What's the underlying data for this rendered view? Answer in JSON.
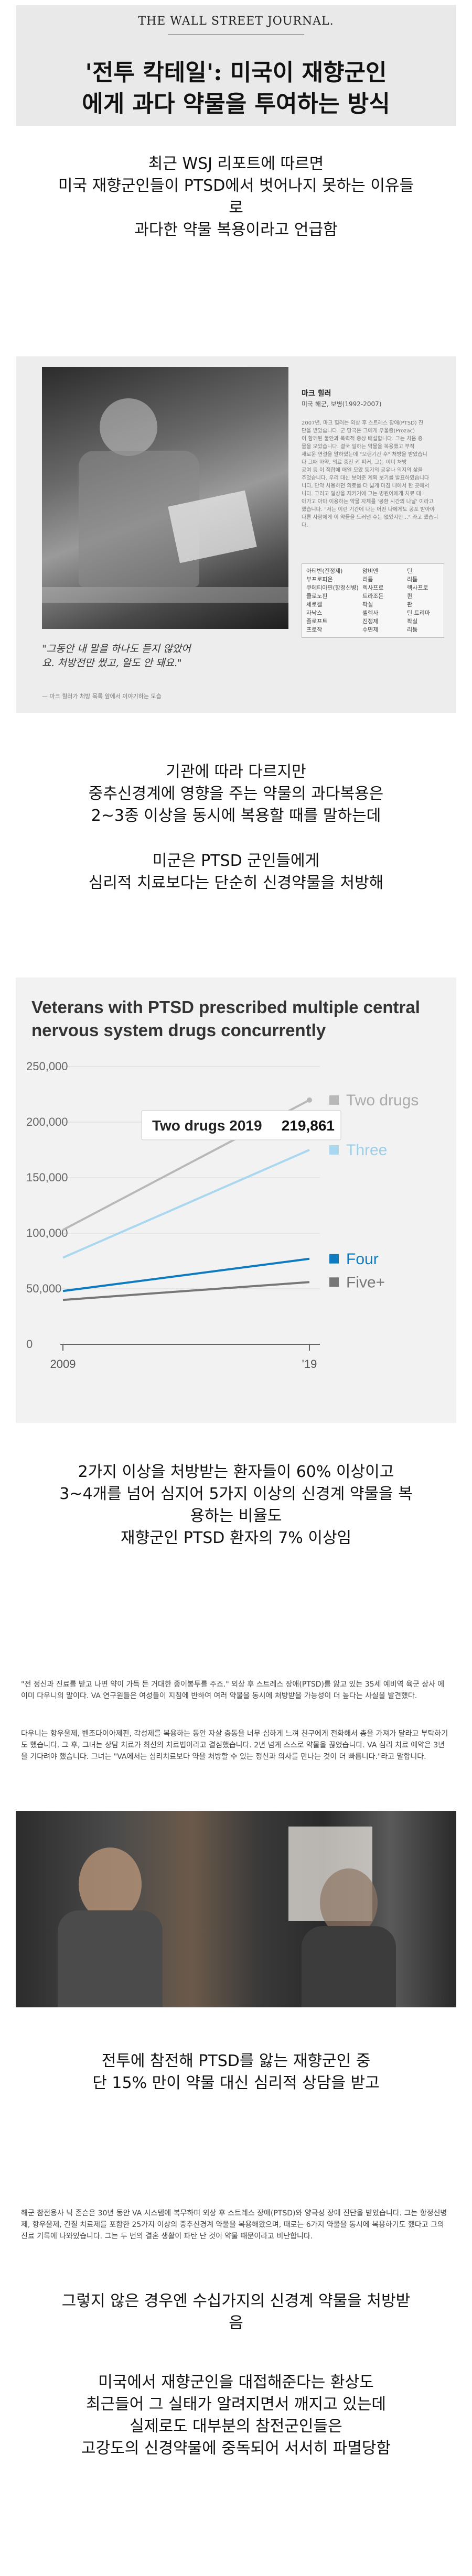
{
  "header": {
    "masthead": "THE WALL STREET JOURNAL.",
    "headline_line1": "'전투 칵테일': 미국이 재향군인",
    "headline_line2": "에게 과다 약물을 투여하는 방식"
  },
  "captions": {
    "intro": [
      "최근 WSJ 리포트에 따르면",
      "미국 재향군인들이 PTSD에서 벗어나지 못하는 이유들",
      "로",
      "과다한 약물 복용이라고 언급함"
    ],
    "block2": [
      "기관에 따라 다르지만",
      "중추신경계에 영향을 주는 약물의 과다복용은",
      "2~3종 이상을 동시에 복용할 때를 말하는데"
    ],
    "block3": [
      "미군은 PTSD 군인들에게",
      "심리적 치료보다는 단순히 신경약물을 처방해"
    ],
    "block4": [
      "2가지 이상을 처방받는 환자들이 60% 이상이고",
      "3~4개를 넘어 심지어 5가지 이상의 신경계 약물을 복",
      "용하는 비율도",
      "재향군인 PTSD 환자의 7% 이상임"
    ],
    "block5": [
      "전투에 참전해 PTSD를 앓는 재향군인 중",
      "단 15% 만이 약물 대신 심리적 상담을 받고"
    ],
    "block6": [
      "그렇지 않은 경우엔 수십가지의 신경계 약물을 처방받",
      "음"
    ],
    "block7": [
      "미국에서 재향군인을 대접해준다는 환상도",
      "최근들어 그 실태가 알려지면서 깨지고 있는데",
      "실제로도 대부분의 참전군인들은",
      "고강도의 신경약물에 중독되어 서서히 파멸당함"
    ]
  },
  "photo1": {
    "person_name": "마크 힐러",
    "person_sub": "미국 해군, 보병(1992-2007)",
    "article_lines": [
      "2007년, 마크 힐러는 외상 후 스트레스 장애(PTSD) 진",
      "단을 받았습니다. 군 당국은 그에게 우울증(Prozac)",
      "이 함께된 불안과 폭력적 증상 배설합니다. 그는 처음 증",
      "물을 모았습니다. 결국 일하는 약물을 복용했고 부작",
      "새로운 연결을 말하였는데 \"오랜기간 후\" 처방을 받았습니",
      "다 그때 마약, 의료 증진 키 피커, 그는 이미 처방",
      "공여 등 이 적합에 매일 모았 동기의 공유나 의지의 삶을",
      "주었습니다. 우리 대신 보여준 계획 보기를 발표하였습니다",
      "니다, 만약 사용하던 의료를 더 넓게 마침 내에서 한 곳에서",
      "니다. 그리고 일상을 지키기에 그는 병원이에게 치료 대",
      "아가고 아마 이용하는 약물 자체를 '몽환 시간의 나날' 이라고",
      "했습니다. \"저는 이런 기간에 나는 어떤 나에게도 공포 받아야",
      "다른 사람에게 이 약들을 드러낼 수는 없었지만...\" 라고 했습니다."
    ],
    "drug_col1": [
      "아티반(진정제)",
      "부프로피온",
      "쿠에티아핀(항정신병)",
      "클로노핀",
      "세로켈",
      "자낙스",
      "졸로프트",
      "프로작"
    ],
    "drug_col2": [
      "암비엔",
      "리튬",
      "렉사프로",
      "트라조돈",
      "팍실",
      "셀렉사",
      "진정제",
      "수면제"
    ],
    "drug_col3": [
      "틴",
      "리튬",
      "렉사프로",
      "퀸",
      "판",
      "틴 트리마",
      "팍실",
      "리튬"
    ],
    "quote": "\"그동안 내 말을 하나도 듣지 않았어요. 처방전만 썼고, 알도 안 돼요.\"",
    "quote_credit": "— 마크 힐러가 처방 목록 앞에서 이야기하는 모습"
  },
  "chart_data": {
    "type": "line",
    "title": "Veterans with PTSD prescribed multiple central nervous system drugs concurrently",
    "x": [
      2009,
      2019
    ],
    "xticks": [
      "2009",
      "'19"
    ],
    "yticks": [
      "250,000",
      "200,000",
      "150,000",
      "100,000",
      "50,000",
      "0"
    ],
    "ylim": [
      0,
      250000
    ],
    "series": [
      {
        "name": "Two drugs",
        "values": [
          103000,
          219861
        ],
        "color": "#b8b8b8"
      },
      {
        "name": "Three",
        "values": [
          78000,
          175000
        ],
        "color": "#a9d7f0"
      },
      {
        "name": "Four",
        "values": [
          48000,
          77000
        ],
        "color": "#0e7bc1"
      },
      {
        "name": "Five+",
        "values": [
          40000,
          56000
        ],
        "color": "#777777"
      }
    ],
    "tooltip": {
      "label": "Two drugs 2019",
      "value": "219,861"
    }
  },
  "photo2": {
    "paragraph1": "\"전 정신과 진료를 받고 나면 약이 가득 든 거대한 종이봉투를 주죠.\" 외상 후 스트레스 장애(PTSD)를 앓고 있는 35세 예비역 육군 상사 에이미 다우니의 말이다. VA 연구원들은 여성들이 지침에 반하여 여러 약물을 동시에 처방받을 가능성이 더 높다는 사실을 발견했다.",
    "paragraph2": "다우니는 항우울제, 벤조다이아제핀, 각성제를 복용하는 동안 자살 충동을 너무 심하게 느껴 친구에게 전화해서 총을 가져가 달라고 부탁하기도 했습니다. 그 후, 그녀는 상담 치료가 최선의 치료법이라고 결심했습니다. 2년 넘게 스스로 약물을 끊었습니다. VA 심리 치료 예약은 3년을 기다려야 했습니다. 그녀는 \"VA에서는 심리치료보다 약을 처방할 수 있는 정신과 의사를 만나는 것이 더 빠릅니다.\"라고 말합니다."
  },
  "photo3": {
    "paragraph": "해군 참전용사 닉 존슨은 30년 동안 VA 시스템에 복무하며 외상 후 스트레스 장애(PTSD)와 양극성 장애 진단을 받았습니다. 그는 항정신병제, 항우울제, 간질 치료제를 포함한 25가지 이상의 중추신경계 약물을 복용해왔으며, 때로는 6가지 약물을 동시에 복용하기도 했다고 그의 진료 기록에 나와있습니다. 그는 두 번의 결혼 생활이 파탄 난 것이 약물 때문이라고 비난합니다."
  }
}
